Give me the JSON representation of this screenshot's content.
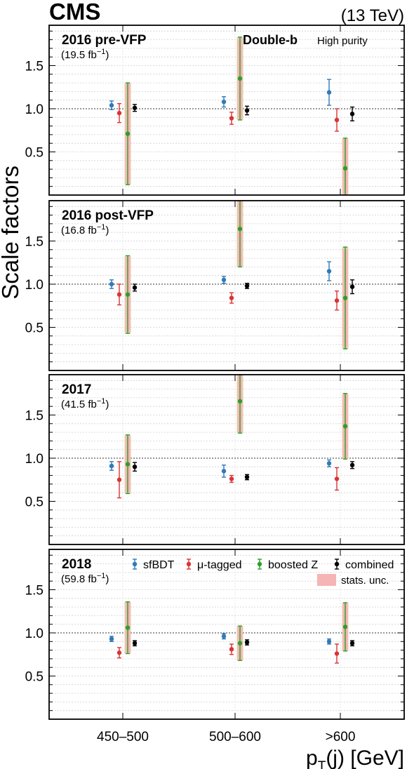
{
  "header": {
    "experiment": "CMS",
    "energy": "(13 TeV)"
  },
  "annotation": {
    "tagger": "Double-b",
    "working_point": "High purity"
  },
  "legend": {
    "items": [
      "sfBDT",
      "μ-tagged",
      "boosted Z",
      "combined"
    ],
    "stat_label": "stats. unc."
  },
  "colors": {
    "sfBDT": "#2f7ab8",
    "mu_tagged": "#d93434",
    "boosted_Z": "#2ca02c",
    "combined": "#000000",
    "stat_band": "#f5b5b5",
    "outer_band": "#e8c9a8"
  },
  "chart_data": {
    "type": "scatter",
    "ylabel": "Scale factors",
    "xlabel": "pT(j) [GeV]",
    "xlabel_parts": {
      "main": "p",
      "sub": "T",
      "rest": "(j) [GeV]"
    },
    "categories": [
      "450–500",
      "500–600",
      ">600"
    ],
    "y_ticks": [
      "0.5",
      "1.0",
      "1.5"
    ],
    "ylim": [
      0,
      2.0
    ],
    "reference_line": 1.0,
    "grid": true,
    "panels": [
      {
        "title": "2016 pre-VFP",
        "lumi_prefix": "(19.5 fb",
        "lumi_sup": "−1",
        "lumi_suffix": ")",
        "series": [
          {
            "name": "sfBDT",
            "values": [
              1.04,
              1.08,
              1.19
            ],
            "err": [
              0.05,
              0.06,
              0.15
            ]
          },
          {
            "name": "μ-tagged",
            "values": [
              0.95,
              0.89,
              0.87
            ],
            "err": [
              0.11,
              0.07,
              0.13
            ]
          },
          {
            "name": "boosted Z",
            "values": [
              0.71,
              1.35,
              0.31
            ],
            "err": [
              0.59,
              0.48,
              0.35
            ],
            "stat": [
              0.58,
              0.46,
              0.34
            ]
          },
          {
            "name": "combined",
            "values": [
              1.01,
              0.98,
              0.94
            ],
            "err": [
              0.04,
              0.05,
              0.08
            ]
          }
        ]
      },
      {
        "title": "2016 post-VFP",
        "lumi_prefix": "(16.8 fb",
        "lumi_sup": "−1",
        "lumi_suffix": ")",
        "series": [
          {
            "name": "sfBDT",
            "values": [
              1.0,
              1.05,
              1.15
            ],
            "err": [
              0.05,
              0.04,
              0.11
            ]
          },
          {
            "name": "μ-tagged",
            "values": [
              0.88,
              0.84,
              0.81
            ],
            "err": [
              0.12,
              0.06,
              0.11
            ]
          },
          {
            "name": "boosted Z",
            "values": [
              0.88,
              1.64,
              0.84
            ],
            "err": [
              0.45,
              0.44,
              0.59
            ],
            "stat": [
              0.43,
              0.43,
              0.56
            ]
          },
          {
            "name": "combined",
            "values": [
              0.96,
              0.98,
              0.97
            ],
            "err": [
              0.04,
              0.03,
              0.08
            ]
          }
        ]
      },
      {
        "title": "2017",
        "lumi_prefix": "(41.5 fb",
        "lumi_sup": "−1",
        "lumi_suffix": ")",
        "series": [
          {
            "name": "sfBDT",
            "values": [
              0.91,
              0.85,
              0.94
            ],
            "err": [
              0.05,
              0.07,
              0.04
            ]
          },
          {
            "name": "μ-tagged",
            "values": [
              0.75,
              0.76,
              0.76
            ],
            "err": [
              0.21,
              0.04,
              0.13
            ]
          },
          {
            "name": "boosted Z",
            "values": [
              0.93,
              1.66,
              1.37
            ],
            "err": [
              0.34,
              0.37,
              0.38
            ],
            "stat": [
              0.32,
              0.36,
              0.37
            ]
          },
          {
            "name": "combined",
            "values": [
              0.9,
              0.78,
              0.92
            ],
            "err": [
              0.05,
              0.03,
              0.04
            ]
          }
        ]
      },
      {
        "title": "2018",
        "lumi_prefix": "(59.8 fb",
        "lumi_sup": "−1",
        "lumi_suffix": ")",
        "series": [
          {
            "name": "sfBDT",
            "values": [
              0.93,
              0.96,
              0.9
            ],
            "err": [
              0.03,
              0.03,
              0.03
            ]
          },
          {
            "name": "μ-tagged",
            "values": [
              0.77,
              0.81,
              0.76
            ],
            "err": [
              0.06,
              0.06,
              0.11
            ]
          },
          {
            "name": "boosted Z",
            "values": [
              1.06,
              0.88,
              1.07
            ],
            "err": [
              0.3,
              0.2,
              0.28
            ],
            "stat": [
              0.29,
              0.2,
              0.27
            ]
          },
          {
            "name": "combined",
            "values": [
              0.88,
              0.89,
              0.88
            ],
            "err": [
              0.03,
              0.03,
              0.03
            ]
          }
        ]
      }
    ]
  }
}
